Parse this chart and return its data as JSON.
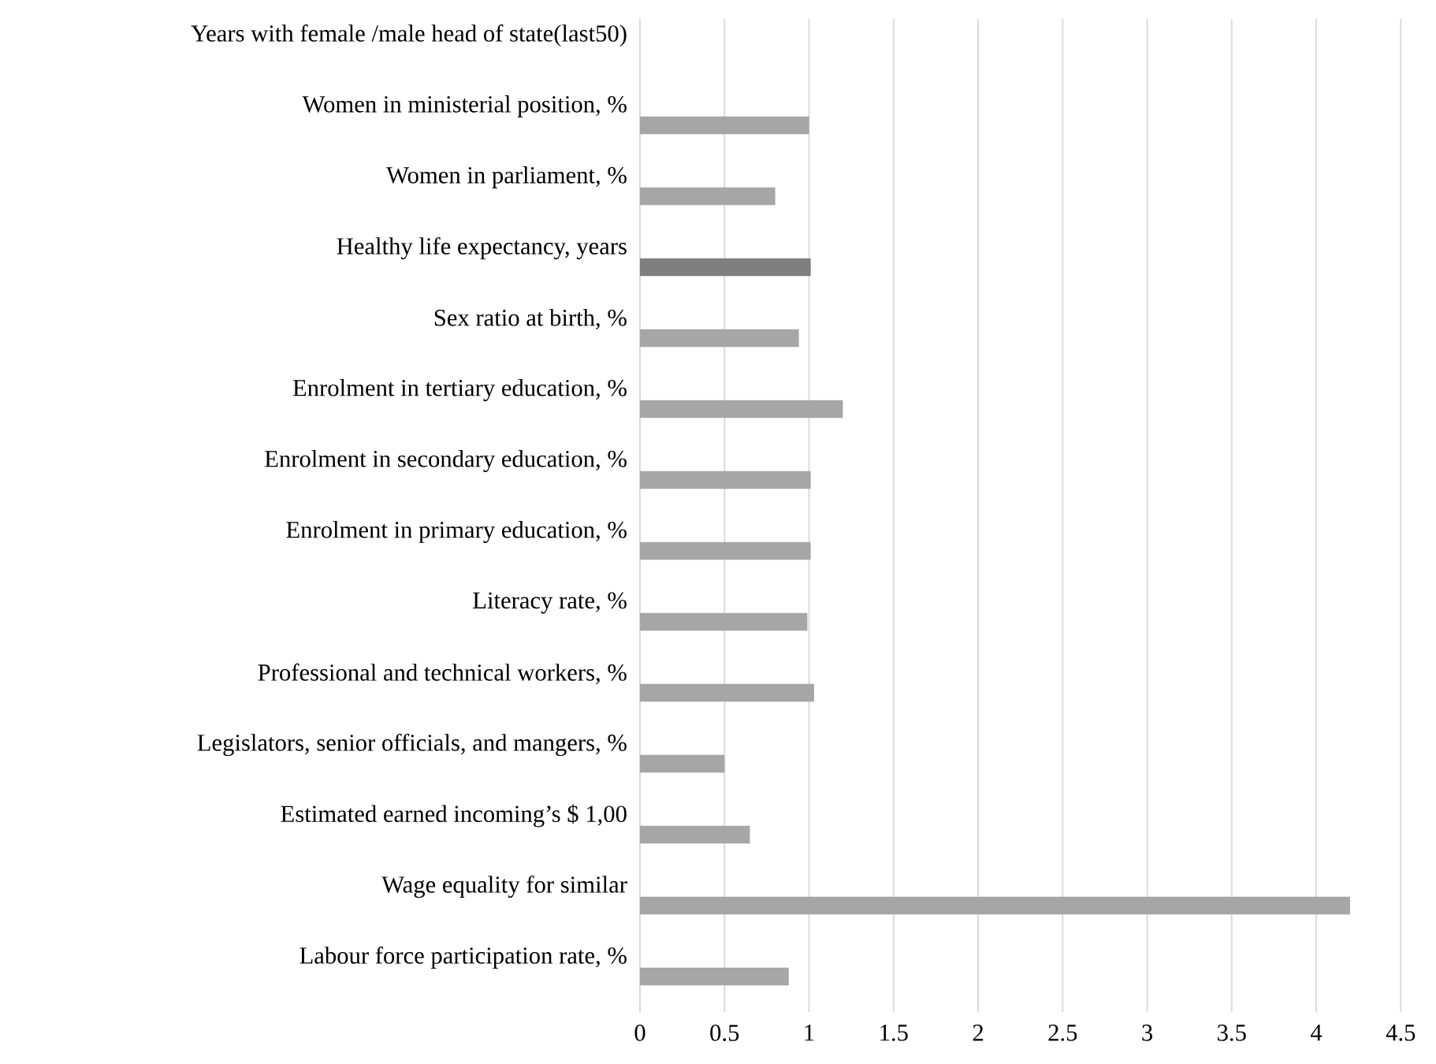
{
  "chart_data": {
    "type": "bar",
    "orientation": "horizontal",
    "categories": [
      "Years with female /male head of state(last50)",
      "Women in ministerial position, %",
      "Women in parliament, %",
      "Healthy life expectancy, years",
      "Sex ratio at birth, %",
      "Enrolment in tertiary education, %",
      "Enrolment in secondary education, %",
      "Enrolment in primary education, %",
      "Literacy rate, %",
      "Professional and technical workers, %",
      "Legislators, senior officials, and mangers, %",
      "Estimated earned incoming’s $ 1,00",
      "Wage equality for similar",
      "Labour force participation rate, %"
    ],
    "values": [
      null,
      1.0,
      0.8,
      1.01,
      0.94,
      1.2,
      1.01,
      1.01,
      0.99,
      1.03,
      0.5,
      0.65,
      4.2,
      0.88
    ],
    "colors": [
      "#a6a6a6",
      "#a6a6a6",
      "#a6a6a6",
      "#7f7f7f",
      "#a6a6a6",
      "#a6a6a6",
      "#a6a6a6",
      "#a6a6a6",
      "#a6a6a6",
      "#a6a6a6",
      "#a6a6a6",
      "#a6a6a6",
      "#a6a6a6",
      "#a6a6a6"
    ],
    "xlim": [
      0,
      4.5
    ],
    "xticks": [
      0,
      0.5,
      1,
      1.5,
      2,
      2.5,
      3,
      3.5,
      4,
      4.5
    ],
    "grid": "x"
  }
}
